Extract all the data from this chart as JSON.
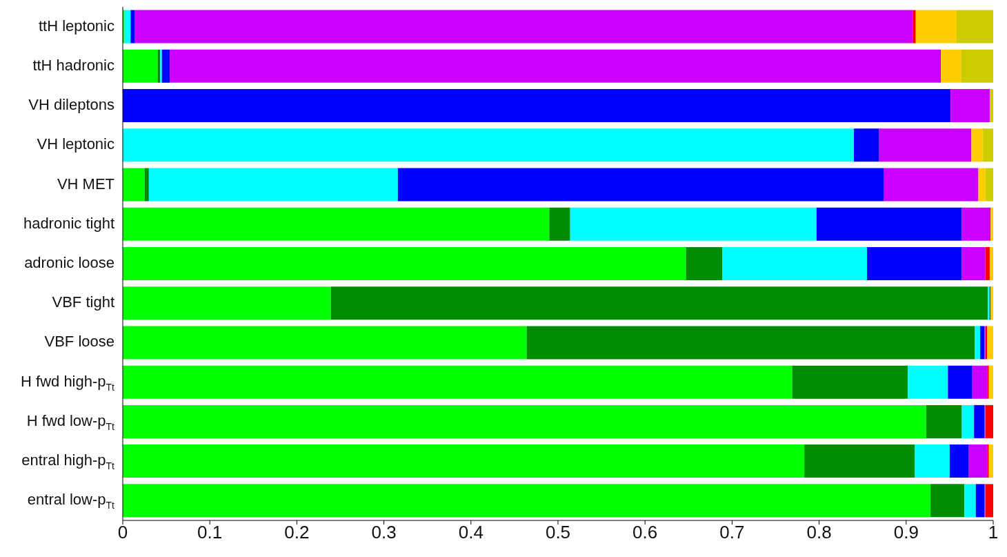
{
  "chart_data": {
    "type": "bar",
    "orientation": "horizontal",
    "stacked": true,
    "categories": [
      "ttH leptonic",
      "ttH hadronic",
      "VH dileptons",
      "VH leptonic",
      "VH MET",
      "hadronic tight",
      "adronic loose",
      "VBF tight",
      "VBF loose",
      "H fwd high-p$_{Tt}$",
      "H fwd low-p$_{Tt}$",
      "entral high-p$_{Tt}$",
      "entral low-p$_{Tt}$"
    ],
    "series": [
      {
        "color": "#00ff00",
        "values": [
          0.002,
          0.04,
          0,
          null,
          0.025,
          0.49,
          0.647,
          0.239,
          0.464,
          0.769,
          0.923,
          0.783,
          0.928
        ]
      },
      {
        "color": "#008c00",
        "values": [
          0,
          0.003,
          0,
          0,
          0.005,
          0.024,
          0.042,
          0.755,
          0.515,
          0.133,
          0.041,
          0.127,
          0.039
        ]
      },
      {
        "color": "#00ffff",
        "values": [
          0.007,
          0.002,
          0,
          0.84,
          0.286,
          0.283,
          0.166,
          0.002,
          0.006,
          0.046,
          0.014,
          0.04,
          0.013
        ]
      },
      {
        "color": "#0000ff",
        "values": [
          0.005,
          0.009,
          0.951,
          0.029,
          0.558,
          0.167,
          0.109,
          0.001,
          0.005,
          0.028,
          0.012,
          0.022,
          0.01
        ]
      },
      {
        "color": "#cc00ff",
        "values": [
          0.894,
          0.885,
          0.045,
          0.106,
          0.109,
          0.032,
          0.027,
          0,
          0.001,
          0.017,
          0.001,
          0.021,
          0.001
        ]
      },
      {
        "color": "#ff0000",
        "values": [
          0.003,
          0.001,
          0,
          0,
          0,
          0.001,
          0.005,
          0,
          0.002,
          0.002,
          0.009,
          0.002,
          0.009
        ]
      },
      {
        "color": "#ffcc00",
        "values": [
          0.047,
          0.023,
          0,
          0.013,
          0.008,
          0.003,
          0.004,
          0.003,
          0.007,
          0.005,
          0,
          0.005,
          0
        ]
      },
      {
        "color": "#cccc00",
        "values": [
          0.042,
          0.037,
          0.004,
          0.012,
          0.009,
          0,
          0,
          0,
          0,
          0,
          0,
          0,
          0
        ]
      }
    ],
    "xlim": [
      0,
      1
    ],
    "xticks": [
      0,
      0.1,
      0.2,
      0.3,
      0.4,
      0.5,
      0.6,
      0.7,
      0.8,
      0.9,
      1
    ]
  }
}
